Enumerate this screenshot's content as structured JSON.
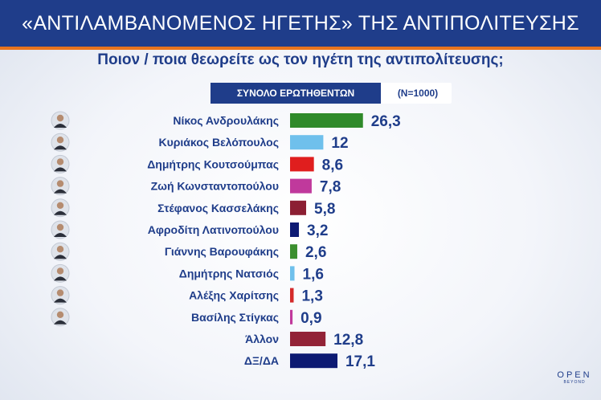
{
  "header": {
    "title": "«ΑΝΤΙΛΑΜΒΑΝΟΜΕΝΟΣ ΗΓΕΤΗΣ» ΤΗΣ ΑΝΤΙΠΟΛΙΤΕΥΣΗΣ",
    "subtitle": "Ποιον / ποια θεωρείτε ως τον ηγέτη της αντιπολίτευσης;"
  },
  "tab": {
    "label": "ΣΥΝΟΛΟ ΕΡΩΤΗΘΕΝΤΩΝ",
    "n": "(Ν=1000)"
  },
  "brand": {
    "line1": "OPEN",
    "line2": "BEYOND"
  },
  "colors": {
    "header_bg": "#1f3d8a",
    "accent_line": "#e8741e",
    "value_text": "#1f3d8a"
  },
  "chart_data": {
    "type": "bar",
    "orientation": "horizontal",
    "categories": [
      "Νίκος Ανδρουλάκης",
      "Κυριάκος Βελόπουλος",
      "Δημήτρης Κουτσούμπας",
      "Ζωή Κωνσταντοπούλου",
      "Στέφανος Κασσελάκης",
      "Αφροδίτη Λατινοπούλου",
      "Γιάννης Βαρουφάκης",
      "Δημήτρης Νατσιός",
      "Αλέξης Χαρίτσης",
      "Βασίλης Στίγκας",
      "Άλλον",
      "ΔΞ/ΔΑ"
    ],
    "values": [
      26.3,
      12,
      8.6,
      7.8,
      5.8,
      3.2,
      2.6,
      1.6,
      1.3,
      0.9,
      12.8,
      17.1
    ],
    "value_labels": [
      "26,3",
      "12",
      "8,6",
      "7,8",
      "5,8",
      "3,2",
      "2,6",
      "1,6",
      "1,3",
      "0,9",
      "12,8",
      "17,1"
    ],
    "colors": [
      "#2f8a2a",
      "#6fc0ec",
      "#e01e1e",
      "#c0399c",
      "#8c1f33",
      "#0d1a73",
      "#3b8f2e",
      "#6fc0ec",
      "#d42a2a",
      "#c0399c",
      "#922337",
      "#0d1a73"
    ],
    "has_avatar": [
      true,
      true,
      true,
      true,
      true,
      true,
      true,
      true,
      true,
      true,
      false,
      false
    ],
    "xlim": [
      0,
      30
    ],
    "grid": false,
    "legend": "none"
  }
}
